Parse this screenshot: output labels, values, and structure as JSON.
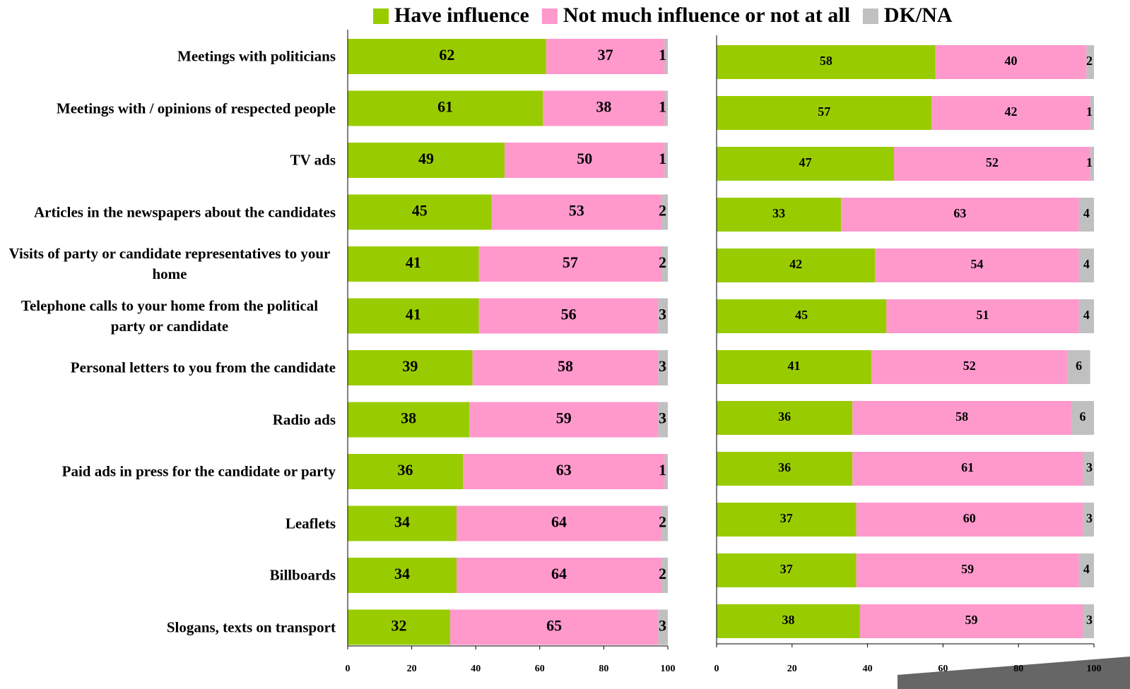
{
  "chart_data": [
    {
      "type": "stacked-bar",
      "categories": [
        "Meetings with politicians",
        "Meetings with / opinions of respected people",
        "TV ads",
        "Articles in the newspapers about the candidates",
        "Visits of party or candidate representatives to your home",
        "Telephone calls to your home from the political party or candidate",
        "Personal letters to you from the candidate",
        "Radio ads",
        "Paid ads in press for the candidate or party",
        "Leaflets",
        "Billboards",
        "Slogans, texts on transport"
      ],
      "series": [
        {
          "name": "Have influence",
          "color": "#99cc00",
          "values": [
            62,
            61,
            49,
            45,
            41,
            41,
            39,
            38,
            36,
            34,
            34,
            32
          ]
        },
        {
          "name": "Not much influence or not at all",
          "color": "#ff99cc",
          "values": [
            37,
            38,
            50,
            53,
            57,
            56,
            58,
            59,
            63,
            64,
            64,
            65
          ]
        },
        {
          "name": "DK/NA",
          "color": "#c0c0c0",
          "values": [
            1,
            1,
            1,
            2,
            2,
            3,
            3,
            3,
            1,
            2,
            2,
            3
          ]
        }
      ],
      "xlim": [
        0,
        100
      ],
      "xticks": [
        0,
        20,
        40,
        60,
        80,
        100
      ],
      "legend": "top"
    },
    {
      "type": "stacked-bar",
      "series": [
        {
          "color": "#99cc00",
          "values": [
            58,
            57,
            47,
            33,
            42,
            45,
            41,
            36,
            36,
            37,
            37,
            38
          ]
        },
        {
          "color": "#ff99cc",
          "values": [
            40,
            42,
            52,
            63,
            54,
            51,
            52,
            58,
            61,
            60,
            59,
            59
          ]
        },
        {
          "color": "#c0c0c0",
          "values": [
            2,
            1,
            1,
            4,
            4,
            4,
            6,
            6,
            3,
            3,
            4,
            3
          ]
        }
      ],
      "xlim": [
        0,
        100
      ],
      "xticks": [
        0,
        20,
        40,
        60,
        80,
        100
      ]
    }
  ]
}
